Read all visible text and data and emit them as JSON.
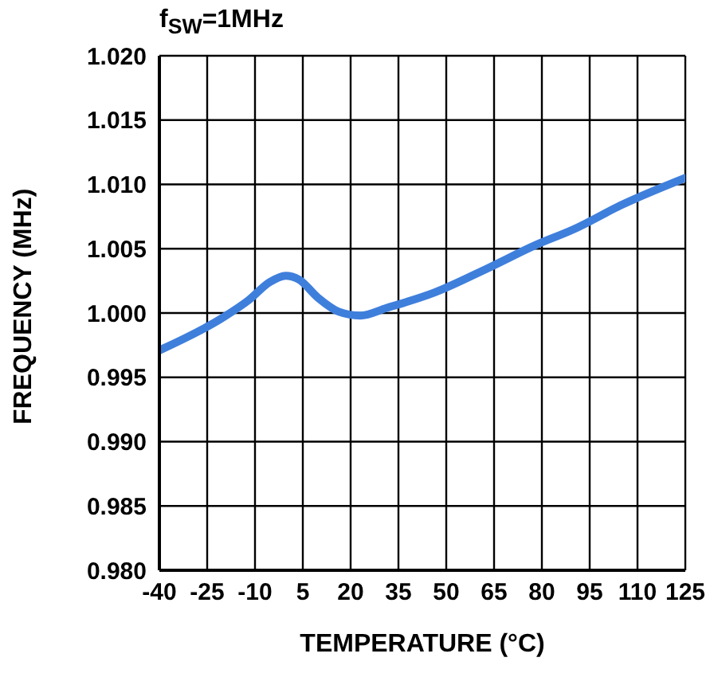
{
  "chart_data": {
    "type": "line",
    "title": "f$_{SW}$=1MHz",
    "xlabel": "TEMPERATURE (°C)",
    "ylabel": "FREQUENCY (MHz)",
    "x": [
      -40,
      -20.4,
      -12,
      -5.4,
      -0.4,
      3.8,
      9.7,
      16.3,
      23,
      31.4,
      46.4,
      63.2,
      78.2,
      89.9,
      105,
      125
    ],
    "series": [
      {
        "color": "#3f7fdc",
        "values": [
          0.9971,
          0.9996,
          1.001,
          1.0024,
          1.0029,
          1.0026,
          1.0012,
          1.0001,
          0.9998,
          1.0004,
          1.0016,
          1.0035,
          1.0053,
          1.0065,
          1.0084,
          1.0105
        ]
      }
    ],
    "xlim": [
      -40,
      125
    ],
    "xticks": [
      -40,
      -25,
      -10,
      5,
      20,
      35,
      50,
      65,
      80,
      95,
      110,
      125
    ],
    "ylim": [
      0.98,
      1.02
    ],
    "yticks": [
      {
        "value": 0.98,
        "label": "0.980"
      },
      {
        "value": 0.985,
        "label": "0.985"
      },
      {
        "value": 0.99,
        "label": "0.990"
      },
      {
        "value": 0.995,
        "label": "0.995"
      },
      {
        "value": 1.0,
        "label": "1.000"
      },
      {
        "value": 1.005,
        "label": "1.005"
      },
      {
        "value": 1.01,
        "label": "1.010"
      },
      {
        "value": 1.015,
        "label": "1.015"
      },
      {
        "value": 1.02,
        "label": "1.020"
      }
    ],
    "grid": true,
    "legend": false,
    "marker": "none",
    "line_style": "solid"
  }
}
